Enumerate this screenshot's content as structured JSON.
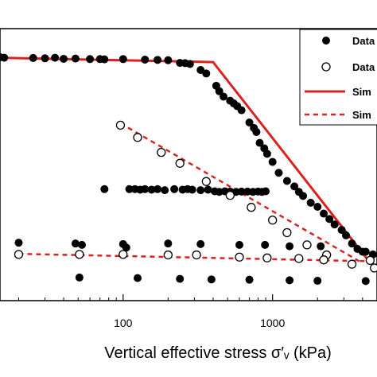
{
  "chart_data": {
    "type": "scatter",
    "title": "",
    "xlabel": "Vertical effective stress σ′ᵥ (kPa)",
    "ylabel": "",
    "x_scale": "log",
    "xlim": [
      15,
      5000
    ],
    "ylim": [
      0,
      1
    ],
    "x_ticks": [
      {
        "value": 100,
        "label": "100"
      },
      {
        "value": 1000,
        "label": "1000"
      }
    ],
    "grid": false,
    "legend": {
      "placement": "top-right",
      "entries": [
        {
          "label": "Data",
          "marker": "filled-circle"
        },
        {
          "label": "Data",
          "marker": "open-circle"
        },
        {
          "label": "Sim",
          "line": "solid"
        },
        {
          "label": "Sim",
          "line": "dashed"
        }
      ]
    },
    "colors": {
      "line": "#d9231e",
      "marker": "#000000"
    },
    "series": [
      {
        "marker": "filled",
        "points": [
          [
            15,
            0.895
          ],
          [
            16,
            0.893
          ],
          [
            25,
            0.892
          ],
          [
            30,
            0.891
          ],
          [
            35,
            0.893
          ],
          [
            40,
            0.889
          ],
          [
            48,
            0.89
          ],
          [
            60,
            0.888
          ],
          [
            70,
            0.888
          ],
          [
            75,
            0.887
          ],
          [
            100,
            0.888
          ],
          [
            140,
            0.886
          ],
          [
            170,
            0.885
          ],
          [
            200,
            0.884
          ],
          [
            240,
            0.874
          ],
          [
            260,
            0.873
          ],
          [
            280,
            0.87
          ],
          [
            330,
            0.848
          ],
          [
            360,
            0.835
          ],
          [
            420,
            0.79
          ],
          [
            440,
            0.77
          ],
          [
            470,
            0.75
          ],
          [
            520,
            0.735
          ],
          [
            550,
            0.725
          ],
          [
            580,
            0.715
          ],
          [
            620,
            0.7
          ],
          [
            700,
            0.655
          ],
          [
            750,
            0.635
          ],
          [
            780,
            0.62
          ],
          [
            820,
            0.58
          ],
          [
            880,
            0.56
          ],
          [
            920,
            0.54
          ],
          [
            1000,
            0.51
          ],
          [
            1100,
            0.47
          ],
          [
            1250,
            0.44
          ],
          [
            1400,
            0.42
          ],
          [
            1500,
            0.4
          ],
          [
            1600,
            0.385
          ],
          [
            1800,
            0.36
          ],
          [
            2000,
            0.345
          ],
          [
            2200,
            0.32
          ],
          [
            2400,
            0.3
          ],
          [
            2600,
            0.28
          ],
          [
            2900,
            0.26
          ],
          [
            3100,
            0.24
          ],
          [
            3400,
            0.21
          ],
          [
            3700,
            0.19
          ],
          [
            4200,
            0.18
          ],
          [
            4700,
            0.17
          ]
        ]
      },
      {
        "marker": "filled",
        "points": [
          [
            75,
            0.41
          ],
          [
            110,
            0.41
          ],
          [
            120,
            0.41
          ],
          [
            130,
            0.408
          ],
          [
            140,
            0.41
          ],
          [
            155,
            0.408
          ],
          [
            170,
            0.41
          ],
          [
            190,
            0.406
          ],
          [
            220,
            0.41
          ],
          [
            250,
            0.408
          ],
          [
            270,
            0.41
          ],
          [
            290,
            0.408
          ],
          [
            330,
            0.406
          ],
          [
            370,
            0.408
          ],
          [
            410,
            0.402
          ],
          [
            440,
            0.4
          ],
          [
            480,
            0.402
          ],
          [
            520,
            0.401
          ],
          [
            570,
            0.4
          ],
          [
            620,
            0.401
          ],
          [
            680,
            0.401
          ],
          [
            740,
            0.4
          ],
          [
            800,
            0.401
          ],
          [
            850,
            0.4
          ],
          [
            900,
            0.402
          ]
        ]
      },
      {
        "marker": "open",
        "points": [
          [
            96,
            0.645
          ],
          [
            125,
            0.6
          ],
          [
            180,
            0.545
          ],
          [
            240,
            0.505
          ],
          [
            360,
            0.438
          ],
          [
            520,
            0.387
          ],
          [
            720,
            0.343
          ],
          [
            1000,
            0.296
          ],
          [
            1250,
            0.25
          ],
          [
            1700,
            0.205
          ],
          [
            2300,
            0.168
          ],
          [
            3400,
            0.134
          ],
          [
            4800,
            0.12
          ]
        ]
      },
      {
        "marker": "filled",
        "points": [
          [
            20,
            0.213
          ],
          [
            48,
            0.21
          ],
          [
            53,
            0.205
          ],
          [
            100,
            0.208
          ],
          [
            105,
            0.195
          ],
          [
            200,
            0.21
          ],
          [
            330,
            0.208
          ],
          [
            600,
            0.205
          ],
          [
            890,
            0.205
          ],
          [
            1300,
            0.2
          ],
          [
            2100,
            0.2
          ],
          [
            4000,
            0.18
          ]
        ]
      },
      {
        "marker": "open",
        "points": [
          [
            20,
            0.17
          ],
          [
            51,
            0.17
          ],
          [
            100,
            0.17
          ],
          [
            200,
            0.168
          ],
          [
            310,
            0.168
          ],
          [
            600,
            0.16
          ],
          [
            920,
            0.157
          ],
          [
            1500,
            0.155
          ],
          [
            2200,
            0.15
          ],
          [
            4500,
            0.148
          ]
        ]
      },
      {
        "marker": "filled",
        "points": [
          [
            51,
            0.085
          ],
          [
            125,
            0.083
          ],
          [
            240,
            0.08
          ],
          [
            390,
            0.078
          ],
          [
            700,
            0.077
          ],
          [
            1300,
            0.075
          ],
          [
            2000,
            0.073
          ],
          [
            4200,
            0.072
          ]
        ]
      },
      {
        "line": "solid",
        "points": [
          [
            15,
            0.893
          ],
          [
            400,
            0.877
          ],
          [
            4300,
            0.153
          ]
        ]
      },
      {
        "line": "dashed",
        "points": [
          [
            20,
            0.172
          ],
          [
            4400,
            0.145
          ]
        ]
      },
      {
        "line": "dashed",
        "points": [
          [
            96,
            0.652
          ],
          [
            3800,
            0.145
          ]
        ]
      }
    ]
  }
}
